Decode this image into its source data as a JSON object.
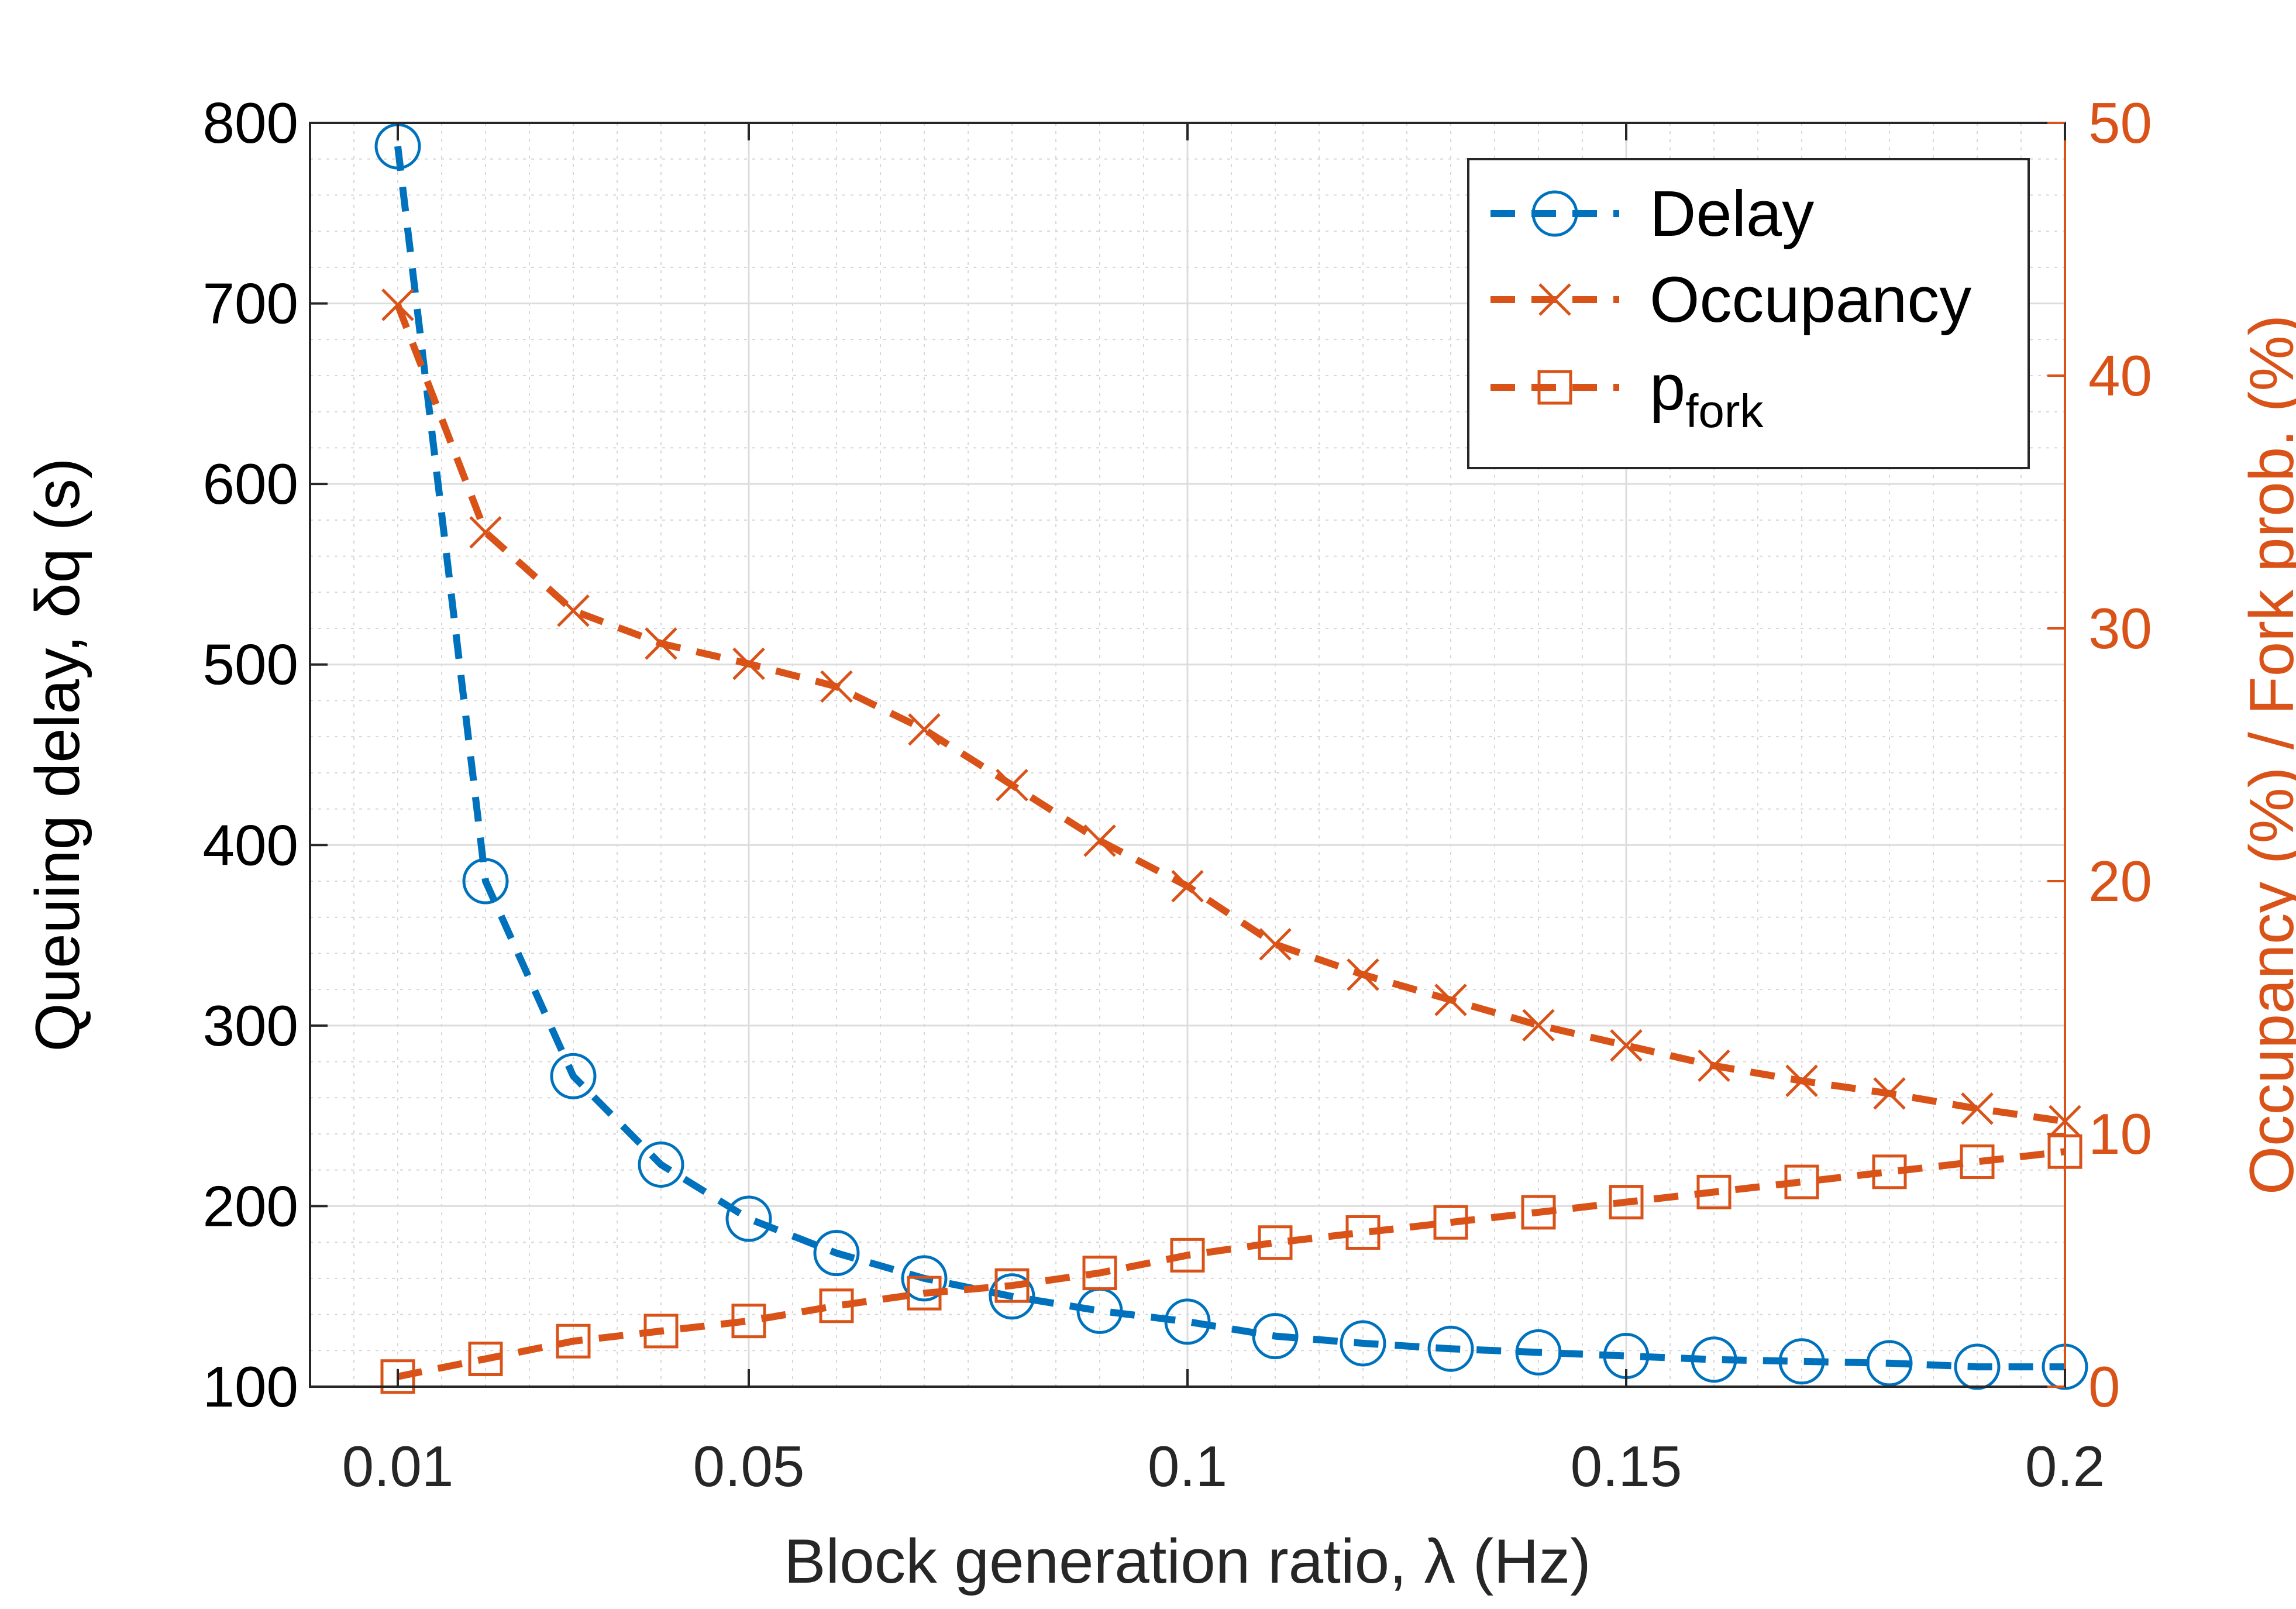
{
  "chart_data": {
    "type": "line",
    "title": "",
    "xlabel": "Block generation ratio, λ (Hz)",
    "ylabel_left": "Queuing delay, δq (s)",
    "ylabel_right": "Occupancy (%) / Fork prob. (%)",
    "x": [
      0.01,
      0.02,
      0.03,
      0.04,
      0.05,
      0.06,
      0.07,
      0.08,
      0.09,
      0.1,
      0.11,
      0.12,
      0.13,
      0.14,
      0.15,
      0.16,
      0.17,
      0.18,
      0.19,
      0.2
    ],
    "xlim": [
      0.0,
      0.2
    ],
    "x_ticks": [
      0.01,
      0.05,
      0.1,
      0.15,
      0.2
    ],
    "x_tick_labels": [
      "0.01",
      "0.05",
      "0.1",
      "0.15",
      "0.2"
    ],
    "ylim_left": [
      100,
      800
    ],
    "y_ticks_left": [
      100,
      200,
      300,
      400,
      500,
      600,
      700,
      800
    ],
    "y_tick_labels_left": [
      "100",
      "200",
      "300",
      "400",
      "500",
      "600",
      "700",
      "800"
    ],
    "ylim_right": [
      0,
      50
    ],
    "y_ticks_right": [
      0,
      10,
      20,
      30,
      40,
      50
    ],
    "y_tick_labels_right": [
      "0",
      "10",
      "20",
      "30",
      "40",
      "50"
    ],
    "grid": true,
    "legend_position": "top-right",
    "series": [
      {
        "name": "Delay",
        "axis": "left",
        "color": "#0072BD",
        "marker": "circle",
        "values": [
          787,
          380,
          272,
          223,
          193,
          174,
          160,
          150,
          142,
          136,
          128,
          124,
          121,
          119,
          117,
          115,
          114,
          113,
          111,
          111
        ]
      },
      {
        "name": "Occupancy",
        "axis": "right",
        "color": "#D95319",
        "marker": "x",
        "values": [
          42.8,
          33.8,
          30.7,
          29.4,
          28.6,
          27.7,
          26.0,
          23.8,
          21.6,
          19.8,
          17.5,
          16.3,
          15.3,
          14.3,
          13.5,
          12.7,
          12.1,
          11.6,
          11.0,
          10.5
        ]
      },
      {
        "name": "p",
        "name_subscript": "fork",
        "axis": "right",
        "color": "#D95319",
        "marker": "square",
        "values": [
          0.4,
          1.1,
          1.8,
          2.2,
          2.6,
          3.2,
          3.7,
          4.0,
          4.5,
          5.2,
          5.7,
          6.1,
          6.5,
          6.9,
          7.3,
          7.7,
          8.1,
          8.5,
          8.9,
          9.3
        ]
      }
    ]
  }
}
